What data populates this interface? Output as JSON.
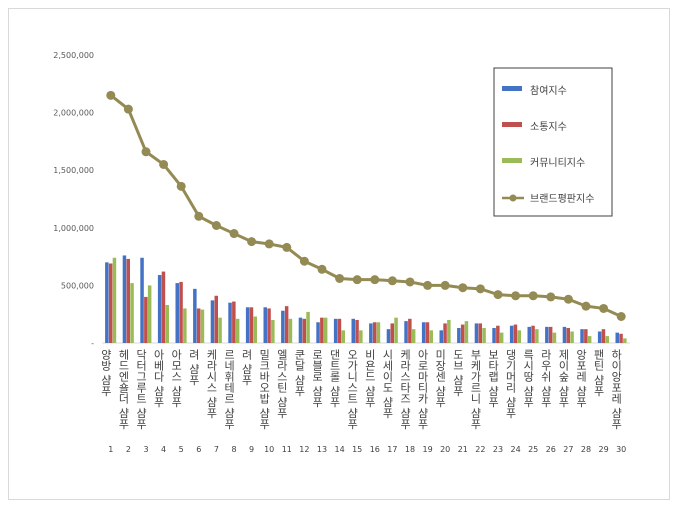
{
  "chart_data": {
    "type": "bar",
    "title": "",
    "xlabel": "",
    "ylabel": "",
    "ylim": [
      0,
      2500000
    ],
    "yticks": [
      "-",
      "500,000",
      "1,000,000",
      "1,500,000",
      "2,000,000",
      "2,500,000"
    ],
    "grid": false,
    "legend_position": "right",
    "ranks": [
      "1",
      "2",
      "3",
      "4",
      "5",
      "6",
      "7",
      "8",
      "9",
      "10",
      "11",
      "12",
      "13",
      "14",
      "15",
      "16",
      "17",
      "18",
      "19",
      "20",
      "21",
      "22",
      "23",
      "24",
      "25",
      "26",
      "27",
      "28",
      "29",
      "30"
    ],
    "categories": [
      "양방 샴푸",
      "헤드엔숄더 샴푸",
      "닥터그루트 샴푸",
      "아베다 샴푸",
      "아모스 샴푸",
      "려 샴푸",
      "케라시스 샴푸",
      "르네휘테르 샴푸",
      "려 샴푸",
      "밀크바오밥 샴푸",
      "엘라스틴 샴푸",
      "쿤달 샴푸",
      "로블로 샴푸",
      "댄트롤 샴푸",
      "오가니스트 샴푸",
      "비욘드 샴푸",
      "시세이도 샴푸",
      "케라스타즈 샴푸",
      "아로마티카 샴푸",
      "미장센 샴푸",
      "도브 샴푸",
      "부케가르니 샴푸",
      "보타랩 샴푸",
      "댕기머리 샴푸",
      "륵시땅 샴푸",
      "라우쉬 샴푸",
      "제이숲 샴푸",
      "앙포레 샴푸",
      "팬틴 샴푸",
      "하이앙포레 샴푸"
    ],
    "series": [
      {
        "name": "참여지수",
        "type": "bar",
        "color": "#4472c4",
        "values": [
          700000,
          760000,
          740000,
          590000,
          520000,
          470000,
          370000,
          350000,
          310000,
          310000,
          280000,
          220000,
          180000,
          210000,
          210000,
          170000,
          120000,
          190000,
          180000,
          110000,
          130000,
          170000,
          130000,
          150000,
          140000,
          140000,
          140000,
          120000,
          100000,
          90000
        ]
      },
      {
        "name": "소통지수",
        "type": "bar",
        "color": "#c0504d",
        "values": [
          690000,
          730000,
          400000,
          620000,
          530000,
          300000,
          410000,
          360000,
          310000,
          300000,
          320000,
          210000,
          220000,
          210000,
          200000,
          180000,
          170000,
          210000,
          180000,
          170000,
          160000,
          170000,
          150000,
          160000,
          150000,
          140000,
          130000,
          120000,
          120000,
          80000
        ]
      },
      {
        "name": "커뮤니티지수",
        "type": "bar",
        "color": "#9bbb59",
        "values": [
          740000,
          520000,
          500000,
          330000,
          300000,
          290000,
          220000,
          210000,
          230000,
          200000,
          210000,
          270000,
          220000,
          110000,
          110000,
          180000,
          220000,
          120000,
          110000,
          200000,
          190000,
          130000,
          90000,
          110000,
          120000,
          90000,
          100000,
          60000,
          60000,
          40000
        ]
      },
      {
        "name": "브랜드평판지수",
        "type": "line",
        "color": "#948a54",
        "values": [
          2150000,
          2030000,
          1660000,
          1550000,
          1360000,
          1100000,
          1020000,
          950000,
          880000,
          860000,
          830000,
          710000,
          640000,
          560000,
          550000,
          550000,
          540000,
          530000,
          500000,
          500000,
          480000,
          470000,
          420000,
          410000,
          410000,
          400000,
          380000,
          320000,
          300000,
          230000
        ]
      }
    ]
  }
}
